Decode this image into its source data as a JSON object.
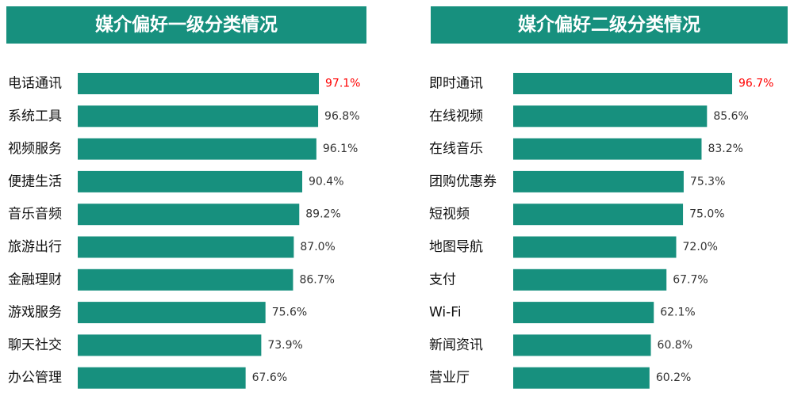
{
  "chart_data": [
    {
      "type": "bar",
      "orientation": "horizontal",
      "title": "媒介偏好一级分类情况",
      "color": "#17907e",
      "categories": [
        "电话通讯",
        "系统工具",
        "视频服务",
        "便捷生活",
        "音乐音频",
        "旅游出行",
        "金融理财",
        "游戏服务",
        "聊天社交",
        "办公管理"
      ],
      "values": [
        97.1,
        96.8,
        96.1,
        90.4,
        89.2,
        87.0,
        86.7,
        75.6,
        73.9,
        67.6
      ],
      "value_labels": [
        "97.1%",
        "96.8%",
        "96.1%",
        "90.4%",
        "89.2%",
        "87.0%",
        "86.7%",
        "75.6%",
        "73.9%",
        "67.6%"
      ],
      "value_label_colors": [
        "#ff0000",
        "#333333",
        "#333333",
        "#333333",
        "#333333",
        "#333333",
        "#333333",
        "#333333",
        "#333333",
        "#333333"
      ]
    },
    {
      "type": "bar",
      "orientation": "horizontal",
      "title": "媒介偏好二级分类情况",
      "color": "#17907e",
      "categories": [
        "即时通讯",
        "在线视频",
        "在线音乐",
        "团购优惠券",
        "短视频",
        "地图导航",
        "支付",
        "Wi-Fi",
        "新闻资讯",
        "营业厅"
      ],
      "values": [
        96.7,
        85.6,
        83.2,
        75.3,
        75.0,
        72.0,
        67.7,
        62.1,
        60.8,
        60.2
      ],
      "value_labels": [
        "96.7%",
        "85.6%",
        "83.2%",
        "75.3%",
        "75.0%",
        "72.0%",
        "67.7%",
        "62.1%",
        "60.8%",
        "60.2%"
      ],
      "value_label_colors": [
        "#ff0000",
        "#333333",
        "#333333",
        "#333333",
        "#333333",
        "#333333",
        "#333333",
        "#333333",
        "#333333",
        "#333333"
      ]
    }
  ]
}
